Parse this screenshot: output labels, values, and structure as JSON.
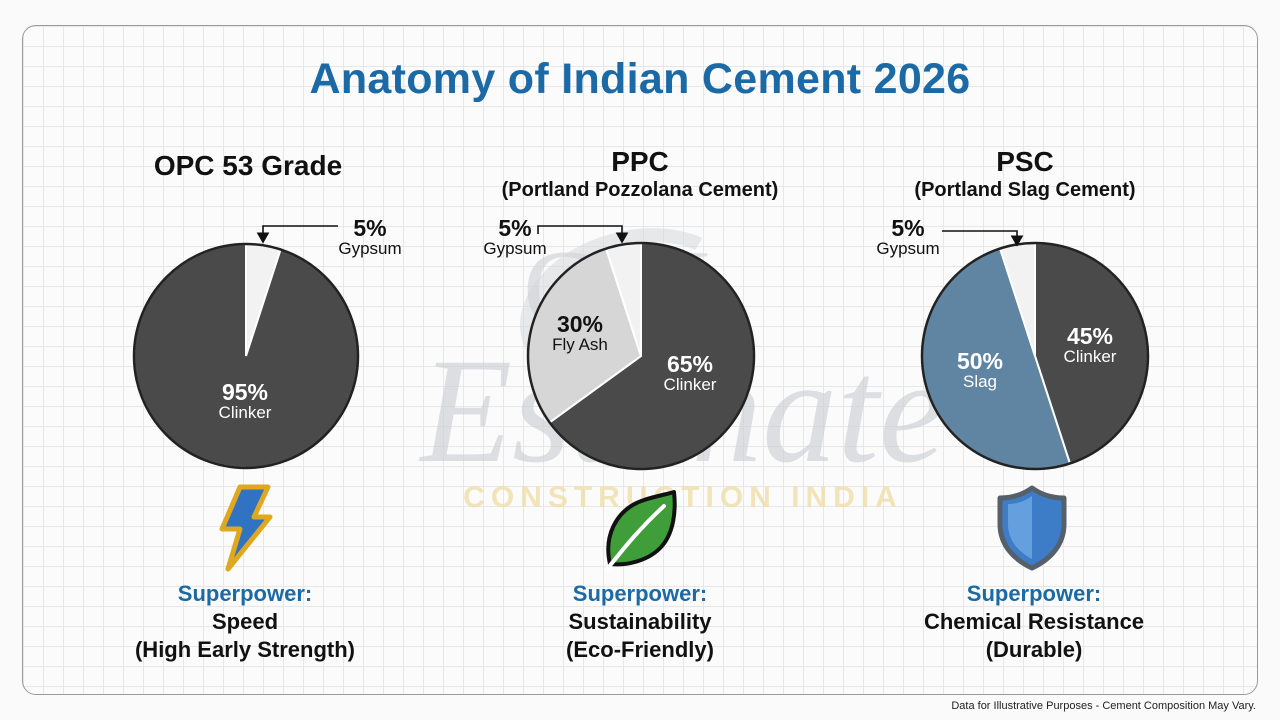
{
  "title": "Anatomy of Indian Cement 2026",
  "watermark": {
    "mark": "CEI",
    "script": "Estimate",
    "tagline": "CONSTRUCTION INDIA"
  },
  "colors": {
    "clinker": "#4a4a4a",
    "gypsum": "#f2f2f2",
    "fly_ash": "#d6d6d6",
    "slag": "#5f85a3",
    "accent": "#1c6aa5"
  },
  "chart_data": [
    {
      "type": "pie",
      "title": "OPC 53 Grade",
      "subtitle": "",
      "slices": [
        {
          "label": "Gypsum",
          "value": 5,
          "display": "5%"
        },
        {
          "label": "Clinker",
          "value": 95,
          "display": "95%"
        }
      ]
    },
    {
      "type": "pie",
      "title": "PPC",
      "subtitle": "(Portland Pozzolana Cement)",
      "slices": [
        {
          "label": "Clinker",
          "value": 65,
          "display": "65%"
        },
        {
          "label": "Fly Ash",
          "value": 30,
          "display": "30%"
        },
        {
          "label": "Gypsum",
          "value": 5,
          "display": "5%"
        }
      ]
    },
    {
      "type": "pie",
      "title": "PSC",
      "subtitle": "(Portland Slag Cement)",
      "slices": [
        {
          "label": "Clinker",
          "value": 45,
          "display": "45%"
        },
        {
          "label": "Slag",
          "value": 50,
          "display": "50%"
        },
        {
          "label": "Gypsum",
          "value": 5,
          "display": "5%"
        }
      ]
    }
  ],
  "superpowers": [
    {
      "key": "Superpower:",
      "line1": "Speed",
      "line2": "(High Early Strength)",
      "icon": "lightning-bolt-icon"
    },
    {
      "key": "Superpower:",
      "line1": "Sustainability",
      "line2": "(Eco-Friendly)",
      "icon": "leaf-icon"
    },
    {
      "key": "Superpower:",
      "line1": "Chemical Resistance",
      "line2": "(Durable)",
      "icon": "shield-icon"
    }
  ],
  "footer": "Data for Illustrative Purposes - Cement Composition May Vary."
}
